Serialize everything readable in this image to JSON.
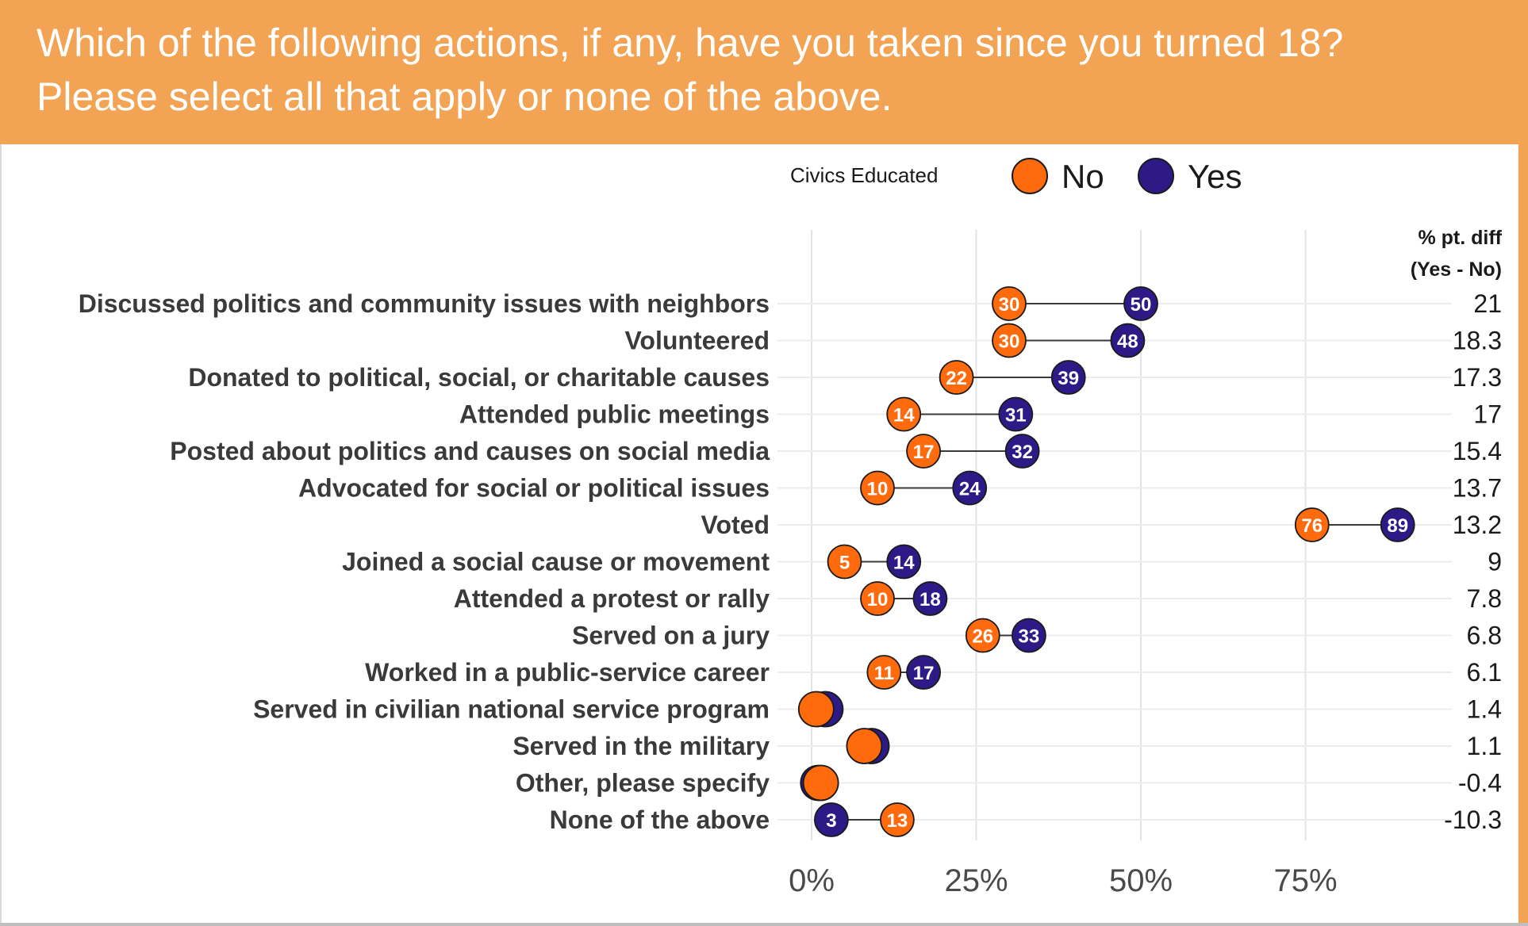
{
  "header": {
    "line1": "Which of the following actions, if any, have you taken since you turned 18?",
    "line2": "Please select all that apply or none of the above."
  },
  "colors": {
    "header_bg": "#f2a454",
    "no": "#ff6a0d",
    "yes": "#2e1a87"
  },
  "chart_data": {
    "type": "dumbbell",
    "legend": {
      "title": "Civics Educated",
      "items": [
        "No",
        "Yes"
      ],
      "placement": "top"
    },
    "diff_header": [
      "% pt. diff",
      "(Yes - No)"
    ],
    "xlim": [
      0,
      100
    ],
    "x_ticks": [
      0,
      25,
      50,
      75
    ],
    "x_tick_labels": [
      "0%",
      "25%",
      "50%",
      "75%"
    ],
    "grid": true,
    "series": [
      {
        "name": "No",
        "values": [
          30,
          30,
          22,
          14,
          17,
          10,
          76,
          5,
          10,
          26,
          11,
          0.7,
          8,
          1.4,
          13
        ]
      },
      {
        "name": "Yes",
        "values": [
          50,
          48,
          39,
          31,
          32,
          24,
          89,
          14,
          18,
          33,
          17,
          2.1,
          9.1,
          1.0,
          3
        ]
      }
    ],
    "categories": [
      "Discussed politics and community issues with neighbors",
      "Volunteered",
      "Donated to political, social, or charitable causes",
      "Attended public meetings",
      "Posted about politics and causes on social media",
      "Advocated for social or political issues",
      "Voted",
      "Joined a social cause or movement",
      "Attended a protest or rally",
      "Served on a jury",
      "Worked in a public-service career",
      "Served in civilian national service program",
      "Served in the military",
      "Other, please specify",
      "None of the above"
    ],
    "no_labels": [
      "30",
      "30",
      "22",
      "14",
      "17",
      "10",
      "76",
      "5",
      "10",
      "26",
      "11",
      "",
      "",
      "",
      "13"
    ],
    "yes_labels": [
      "50",
      "48",
      "39",
      "31",
      "32",
      "24",
      "89",
      "14",
      "18",
      "33",
      "17",
      "",
      "",
      "",
      "3"
    ],
    "diff": [
      "21",
      "18.3",
      "17.3",
      "17",
      "15.4",
      "13.7",
      "13.2",
      "9",
      "7.8",
      "6.8",
      "6.1",
      "1.4",
      "1.1",
      "-0.4",
      "-10.3"
    ]
  }
}
